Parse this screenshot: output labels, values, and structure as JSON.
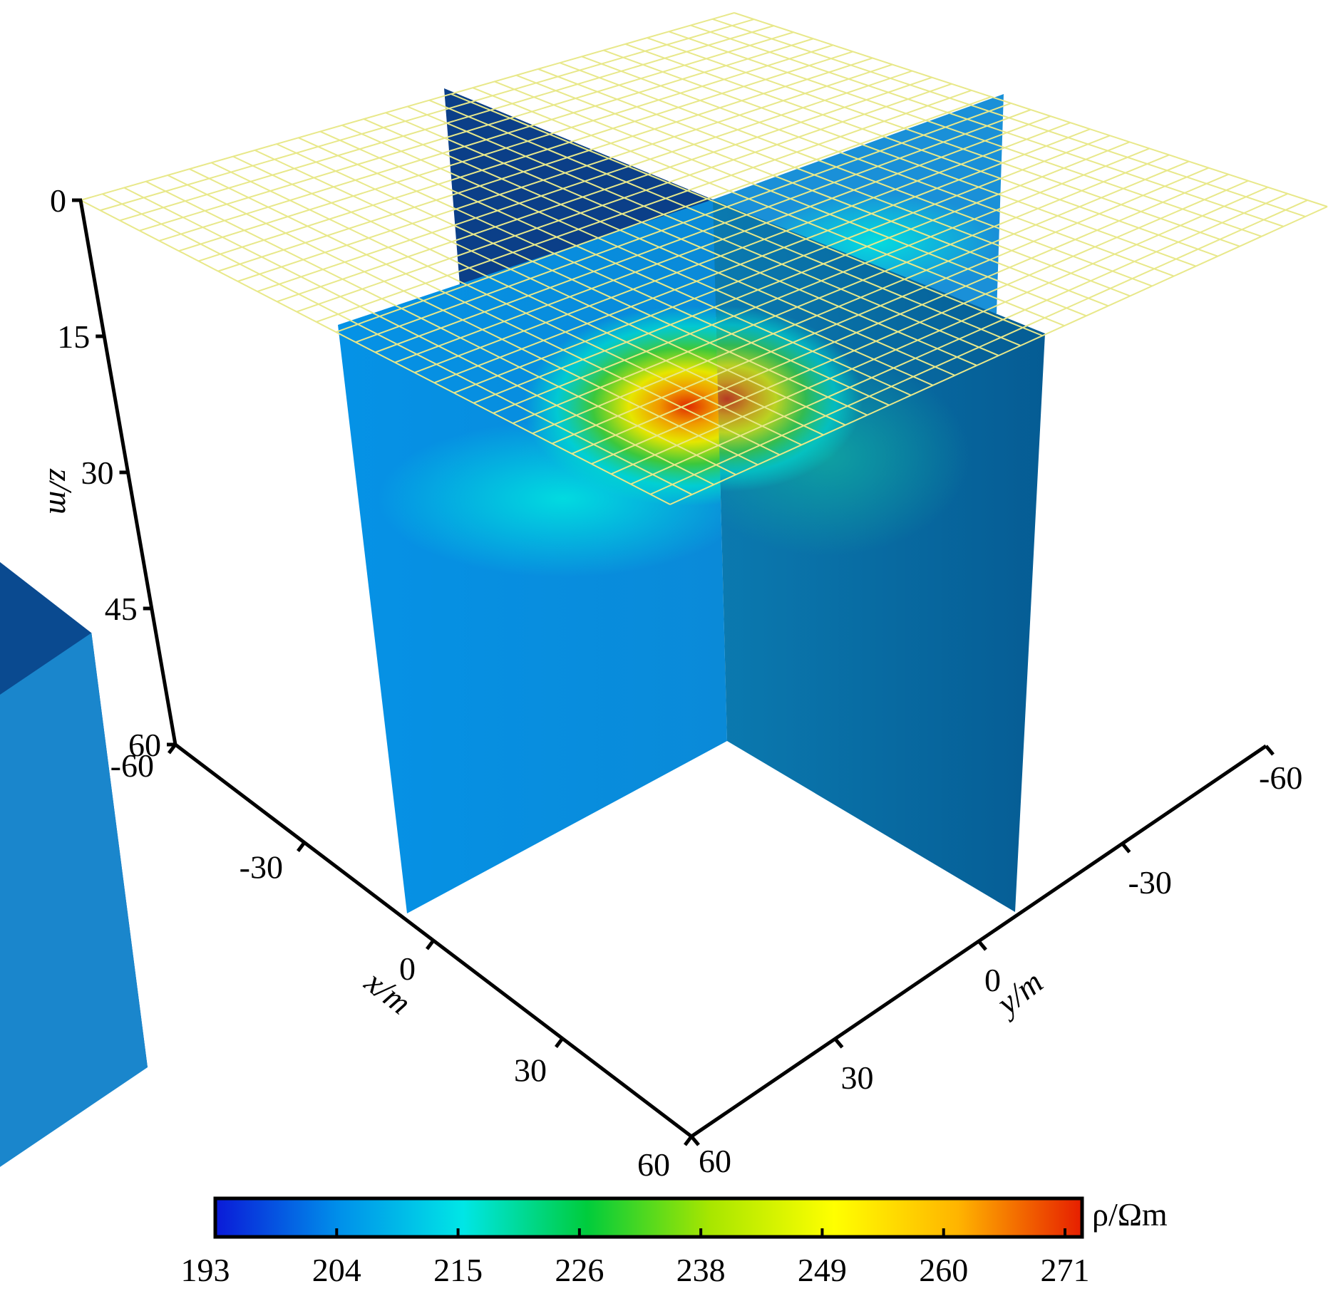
{
  "chart_data": {
    "type": "3d-volume-slices",
    "grid_visible": true,
    "axes": {
      "x": {
        "label": "x/m",
        "range": [
          -60,
          60
        ],
        "ticks": [
          -60,
          -30,
          0,
          30,
          60
        ]
      },
      "y": {
        "label": "y/m",
        "range": [
          -60,
          60
        ],
        "ticks": [
          -60,
          -30,
          0,
          30,
          60
        ]
      },
      "z": {
        "label": "z/m",
        "range": [
          0,
          60
        ],
        "ticks": [
          0,
          15,
          30,
          45,
          60
        ]
      }
    },
    "slices": [
      {
        "name": "",
        "orientation": "horizontal (z)",
        "position": 15
      },
      {
        "name": "",
        "orientation": "vertical (x)",
        "position": 0
      },
      {
        "name": "",
        "orientation": "vertical (y)",
        "position": 0
      }
    ],
    "anomaly": {
      "center": [
        0,
        0,
        20
      ],
      "max_value": 271
    },
    "colorbar": {
      "label": "ρ/Ωm",
      "range": [
        193,
        271
      ],
      "ticks": [
        "193",
        "204",
        "215",
        "226",
        "238",
        "249",
        "260",
        "271"
      ],
      "colormap": [
        "#0a1ad8",
        "#0090ea",
        "#00e6e6",
        "#00cc3c",
        "#a8e600",
        "#ffff00",
        "#ffb400",
        "#e61e00"
      ]
    }
  }
}
